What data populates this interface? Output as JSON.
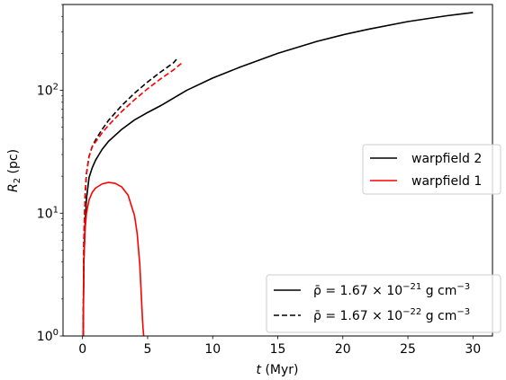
{
  "chart_data": {
    "type": "line",
    "xlabel_var": "t",
    "xlabel_unit": "(Myr)",
    "ylabel_var": "R",
    "ylabel_sub": "2",
    "ylabel_unit": "(pc)",
    "xlim": [
      -1.5,
      31.5
    ],
    "ylim": [
      1,
      500
    ],
    "yscale": "log",
    "grid": false,
    "x_ticks": [
      0,
      5,
      10,
      15,
      20,
      25,
      30
    ],
    "y_ticks": [
      {
        "value": 1,
        "base": "10",
        "exp": "0"
      },
      {
        "value": 10,
        "base": "10",
        "exp": "1"
      },
      {
        "value": 100,
        "base": "10",
        "exp": "2"
      }
    ],
    "legend_color": {
      "placement": "center-right",
      "entries": [
        {
          "label": "warpfield 2",
          "color": "#000000"
        },
        {
          "label": "warpfield 1",
          "color": "#ff0000"
        }
      ]
    },
    "legend_style": {
      "placement": "lower-right",
      "entries": [
        {
          "dash": "solid",
          "pre": "ρ̄ = 1.67 × 10",
          "exp": "−21",
          "post": " g cm",
          "unit_exp": "−3"
        },
        {
          "dash": "dashed",
          "pre": "ρ̄ = 1.67 × 10",
          "exp": "−22",
          "post": " g cm",
          "unit_exp": "−3"
        }
      ]
    },
    "series": [
      {
        "color": "#000000",
        "dash": "solid",
        "x": [
          0.05,
          0.1,
          0.2,
          0.3,
          0.5,
          0.75,
          1.0,
          1.5,
          2.0,
          3.0,
          4.0,
          5.0,
          6.0,
          8.0,
          10.0,
          12.0,
          15.0,
          18.0,
          20.0,
          22.0,
          25.0,
          28.0,
          30.0
        ],
        "y": [
          1.0,
          4.0,
          8.5,
          13.0,
          19.5,
          23.5,
          27.0,
          33.0,
          38.5,
          48.0,
          57.5,
          66.0,
          75.0,
          100.0,
          126.0,
          153.0,
          200.0,
          250.0,
          283.0,
          315.0,
          363.0,
          405.0,
          430.0
        ]
      },
      {
        "color": "#ff0000",
        "dash": "solid",
        "x": [
          0.05,
          0.1,
          0.2,
          0.3,
          0.5,
          0.75,
          1.0,
          1.5,
          2.0,
          2.5,
          3.0,
          3.5,
          4.0,
          4.2,
          4.4,
          4.55,
          4.6,
          4.65,
          4.7
        ],
        "y": [
          1.0,
          4.0,
          7.5,
          10.0,
          12.8,
          14.8,
          16.0,
          17.3,
          17.8,
          17.5,
          16.4,
          14.0,
          9.5,
          6.8,
          3.8,
          1.8,
          1.4,
          1.15,
          1.0
        ]
      },
      {
        "color": "#000000",
        "dash": "dashed",
        "x": [
          0.05,
          0.1,
          0.2,
          0.3,
          0.5,
          0.75,
          1.0,
          1.5,
          2.0,
          3.0,
          4.0,
          5.0,
          6.0,
          7.0,
          7.3
        ],
        "y": [
          1.0,
          6.0,
          14.0,
          21.0,
          29.0,
          35.0,
          39.5,
          48.0,
          57.0,
          75.0,
          95.0,
          117.0,
          141.0,
          168.0,
          183.0
        ]
      },
      {
        "color": "#ff0000",
        "dash": "dashed",
        "x": [
          0.05,
          0.1,
          0.2,
          0.3,
          0.5,
          0.75,
          1.0,
          1.5,
          2.0,
          3.0,
          4.0,
          5.0,
          6.0,
          7.0,
          7.6
        ],
        "y": [
          1.0,
          6.0,
          14.0,
          21.0,
          29.0,
          35.0,
          38.0,
          45.0,
          52.0,
          67.0,
          84.0,
          103.0,
          124.0,
          147.0,
          166.0
        ]
      }
    ]
  }
}
